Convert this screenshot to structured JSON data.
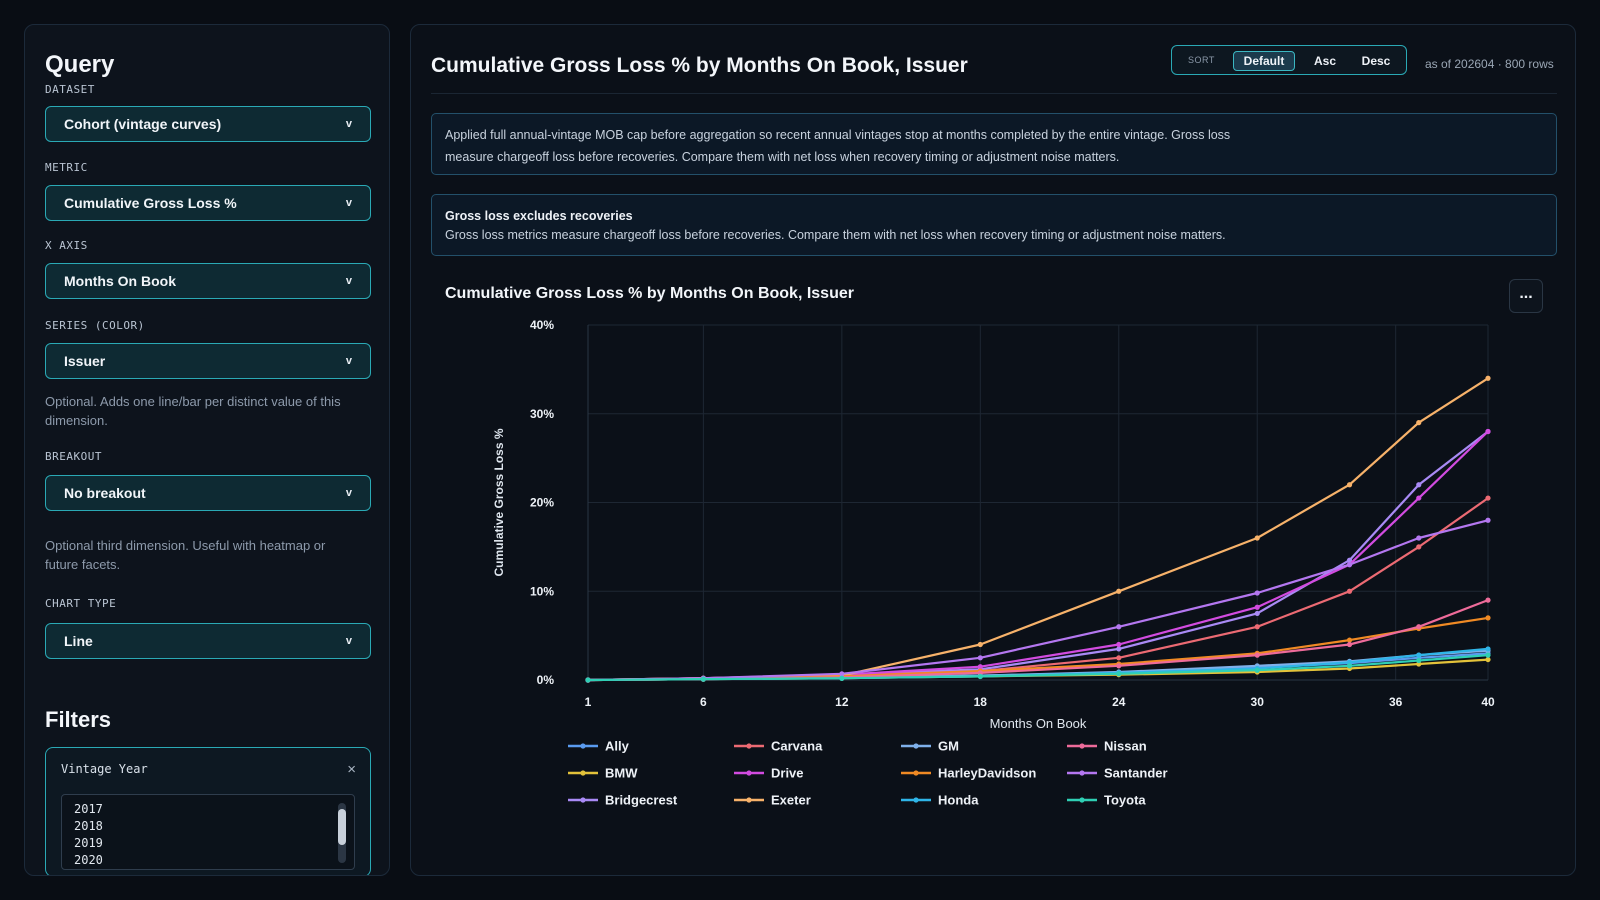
{
  "query": {
    "title": "Query",
    "dataset": {
      "label": "DATASET",
      "value": "Cohort (vintage curves)"
    },
    "metric": {
      "label": "METRIC",
      "value": "Cumulative Gross Loss %"
    },
    "x_axis": {
      "label": "X AXIS",
      "value": "Months On Book"
    },
    "series": {
      "label": "SERIES (COLOR)",
      "value": "Issuer",
      "helper": "Optional. Adds one line/bar per distinct value of this dimension."
    },
    "breakout": {
      "label": "BREAKOUT",
      "value": "No breakout",
      "helper": "Optional third dimension. Useful with heatmap or future facets."
    },
    "chart_type": {
      "label": "CHART TYPE",
      "value": "Line"
    },
    "chevron": "v"
  },
  "filters": {
    "title": "Filters",
    "vintage_year": {
      "label": "Vintage Year",
      "close": "×",
      "options": [
        "2017",
        "2018",
        "2019",
        "2020"
      ]
    }
  },
  "main": {
    "title": "Cumulative Gross Loss % by Months On Book, Issuer",
    "sort": {
      "label": "SORT",
      "options": [
        "Default",
        "Asc",
        "Desc"
      ],
      "selected": "Default"
    },
    "as_of": "as of 202604 · 800 rows",
    "note": "Applied full annual-vintage MOB cap before aggregation so recent annual vintages stop at months completed by the entire vintage. Gross loss measure chargeoff loss before recoveries. Compare them with net loss when recovery timing or adjustment noise matters.",
    "warning_title": "Gross loss excludes recoveries",
    "warning_text": "Gross loss metrics measure chargeoff loss before recoveries. Compare them with net loss when recovery timing or adjustment noise matters.",
    "more": "..."
  },
  "chart_data": {
    "type": "line",
    "title": "Cumulative Gross Loss % by Months On Book, Issuer",
    "xlabel": "Months On Book",
    "ylabel": "Cumulative Gross Loss %",
    "x": [
      1,
      6,
      12,
      18,
      24,
      30,
      34,
      37,
      40
    ],
    "x_ticks": [
      1,
      6,
      12,
      18,
      24,
      30,
      36,
      40
    ],
    "x_tick_labels": [
      "1",
      "6",
      "12",
      "18",
      "24",
      "30",
      "36",
      "40"
    ],
    "y_ticks": [
      0,
      10,
      20,
      30,
      40
    ],
    "y_tick_labels": [
      "0%",
      "10%",
      "20%",
      "30%",
      "40%"
    ],
    "xlim": [
      1,
      40
    ],
    "ylim": [
      0,
      40
    ],
    "grid": true,
    "legend_position": "bottom",
    "series": [
      {
        "name": "Ally",
        "color": "#5a9bf0",
        "values": [
          0,
          0.1,
          0.3,
          0.5,
          0.8,
          1.4,
          1.9,
          2.5,
          3.0
        ]
      },
      {
        "name": "BMW",
        "color": "#e3c23a",
        "values": [
          0,
          0.1,
          0.2,
          0.4,
          0.6,
          0.9,
          1.3,
          1.8,
          2.3
        ]
      },
      {
        "name": "Bridgecrest",
        "color": "#a98af5",
        "values": [
          0,
          0.2,
          0.6,
          1.2,
          3.5,
          7.5,
          13.5,
          22.0,
          28.0
        ]
      },
      {
        "name": "Carvana",
        "color": "#ec6a73",
        "values": [
          0,
          0.2,
          0.5,
          1.0,
          2.5,
          6.0,
          10.0,
          15.0,
          20.5
        ]
      },
      {
        "name": "Drive",
        "color": "#d24be0",
        "values": [
          0,
          0.2,
          0.6,
          1.5,
          4.0,
          8.2,
          13.0,
          20.5,
          28.0
        ]
      },
      {
        "name": "Exeter",
        "color": "#f7b26a",
        "values": [
          0,
          0.2,
          0.5,
          4.0,
          10.0,
          16.0,
          22.0,
          29.0,
          34.0
        ]
      },
      {
        "name": "GM",
        "color": "#7fb0ea",
        "values": [
          0,
          0.1,
          0.3,
          0.5,
          0.9,
          1.6,
          2.1,
          2.8,
          3.3
        ]
      },
      {
        "name": "HarleyDavidson",
        "color": "#f08a24",
        "values": [
          0,
          0.1,
          0.4,
          1.0,
          1.8,
          3.0,
          4.5,
          5.8,
          7.0
        ]
      },
      {
        "name": "Honda",
        "color": "#2fb5e8",
        "values": [
          0,
          0.1,
          0.2,
          0.4,
          0.8,
          1.3,
          2.0,
          2.8,
          3.5
        ]
      },
      {
        "name": "Nissan",
        "color": "#ee6b9a",
        "values": [
          0,
          0.1,
          0.3,
          0.8,
          1.6,
          2.8,
          4.0,
          6.0,
          9.0
        ]
      },
      {
        "name": "Santander",
        "color": "#b477f0",
        "values": [
          0,
          0.2,
          0.7,
          2.5,
          6.0,
          9.8,
          13.0,
          16.0,
          18.0
        ]
      },
      {
        "name": "Toyota",
        "color": "#2fcfb4",
        "values": [
          0,
          0.1,
          0.2,
          0.4,
          0.7,
          1.1,
          1.6,
          2.2,
          2.8
        ]
      }
    ]
  }
}
